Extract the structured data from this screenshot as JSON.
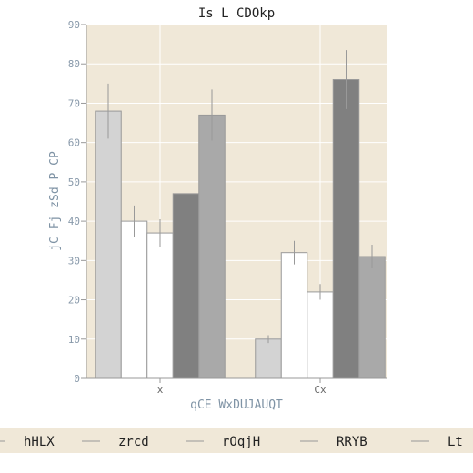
{
  "chart_data": {
    "type": "bar",
    "title": "Is L CDOkp",
    "xlabel": "qCE WxDUJAUQT",
    "ylabel": "jC Fj zSd P CP",
    "ylim": [
      0,
      90
    ],
    "yticks": [
      0,
      10,
      20,
      30,
      40,
      50,
      60,
      70,
      80,
      90
    ],
    "categories": [
      "x",
      "Cx"
    ],
    "grid": true,
    "legend_placement": "bottom",
    "series": [
      {
        "name": "hHLX",
        "color": "#d3d3d3",
        "values": [
          68,
          10
        ],
        "errors": [
          7,
          1
        ]
      },
      {
        "name": "zrcd",
        "color": "#ffffff",
        "values": [
          40,
          32
        ],
        "errors": [
          4,
          3
        ]
      },
      {
        "name": "rOqjH",
        "color": "#ffffff",
        "values": [
          37,
          22
        ],
        "errors": [
          3.5,
          2
        ]
      },
      {
        "name": "RRYB",
        "color": "#808080",
        "values": [
          47,
          76
        ],
        "errors": [
          4.5,
          7.5
        ]
      },
      {
        "name": "Lt",
        "color": "#a9a9a9",
        "values": [
          67,
          31
        ],
        "errors": [
          6.5,
          3
        ]
      }
    ]
  },
  "colors": {
    "plot_background": "#f0e8d8",
    "legend_background": "#f0e8d8",
    "bar_edge": "#999999",
    "error_bar": "#999999",
    "grid": "#ffffff"
  }
}
